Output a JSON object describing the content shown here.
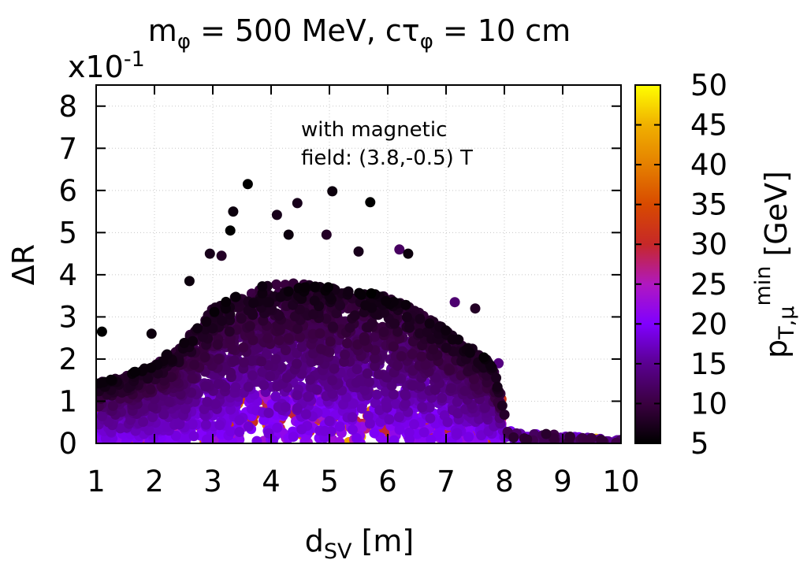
{
  "chart_data": {
    "type": "scatter",
    "title": {
      "prefix1": "m",
      "sub1": "φ",
      "mid": " = 500 MeV, cτ",
      "sub2": "φ",
      "suffix": " = 10 cm"
    },
    "y_multiplier": "x10",
    "y_multiplier_exp": "-1",
    "xlabel": {
      "main": "d",
      "sub": "SV",
      "rest": " [m]"
    },
    "ylabel": "ΔR",
    "xlim": [
      1,
      10
    ],
    "ylim": [
      0,
      8.5
    ],
    "x_ticks": [
      "1",
      "2",
      "3",
      "4",
      "5",
      "6",
      "7",
      "8",
      "9",
      "10"
    ],
    "y_ticks": [
      "0",
      "1",
      "2",
      "3",
      "4",
      "5",
      "6",
      "7",
      "8"
    ],
    "grid": true,
    "annotation": [
      "with magnetic",
      "field: (3.8,-0.5) T"
    ],
    "colorbar": {
      "label": {
        "main": "p",
        "sub": "T,μ",
        "sup": "min",
        "rest": " [GeV]"
      },
      "range": [
        5,
        50
      ],
      "ticks": [
        "5",
        "10",
        "15",
        "20",
        "25",
        "30",
        "35",
        "40",
        "45",
        "50"
      ],
      "stops": [
        "#000000",
        "#3a0040",
        "#5a0090",
        "#8000ff",
        "#b018c0",
        "#c62828",
        "#d84a00",
        "#e58000",
        "#f0b000",
        "#ffff00"
      ]
    },
    "envelope_description": "dense cloud of points, ΔR rising from ~1.5 at d=1 m to a peak ~4 near d=4-5 m, falling to ~2 at 8 m, then only ΔR < 0.3 for 8-10 m",
    "outlier_points": [
      {
        "x": 3.6,
        "y": 6.15,
        "pt": 5
      },
      {
        "x": 5.05,
        "y": 5.98,
        "pt": 6
      },
      {
        "x": 4.45,
        "y": 5.7,
        "pt": 7
      },
      {
        "x": 5.7,
        "y": 5.72,
        "pt": 5
      },
      {
        "x": 3.35,
        "y": 5.5,
        "pt": 6
      },
      {
        "x": 4.1,
        "y": 5.42,
        "pt": 7
      },
      {
        "x": 3.3,
        "y": 5.05,
        "pt": 5
      },
      {
        "x": 4.3,
        "y": 4.95,
        "pt": 6
      },
      {
        "x": 4.95,
        "y": 4.95,
        "pt": 8
      },
      {
        "x": 5.5,
        "y": 4.55,
        "pt": 7
      },
      {
        "x": 6.2,
        "y": 4.6,
        "pt": 12
      },
      {
        "x": 2.95,
        "y": 4.5,
        "pt": 7
      },
      {
        "x": 6.35,
        "y": 4.5,
        "pt": 6
      },
      {
        "x": 3.15,
        "y": 4.45,
        "pt": 8
      },
      {
        "x": 2.6,
        "y": 3.85,
        "pt": 6
      },
      {
        "x": 7.5,
        "y": 3.2,
        "pt": 8
      },
      {
        "x": 7.15,
        "y": 3.35,
        "pt": 13
      },
      {
        "x": 1.1,
        "y": 2.65,
        "pt": 5
      },
      {
        "x": 1.95,
        "y": 2.6,
        "pt": 6
      },
      {
        "x": 7.9,
        "y": 1.9,
        "pt": 14
      },
      {
        "x": 7.95,
        "y": 1.05,
        "pt": 32
      },
      {
        "x": 7.95,
        "y": 0.6,
        "pt": 30
      },
      {
        "x": 7.3,
        "y": 0.55,
        "pt": 44
      },
      {
        "x": 2.9,
        "y": 0.3,
        "pt": 45
      },
      {
        "x": 4.4,
        "y": 0.7,
        "pt": 48
      },
      {
        "x": 9.9,
        "y": 0.05,
        "pt": 18
      }
    ]
  }
}
